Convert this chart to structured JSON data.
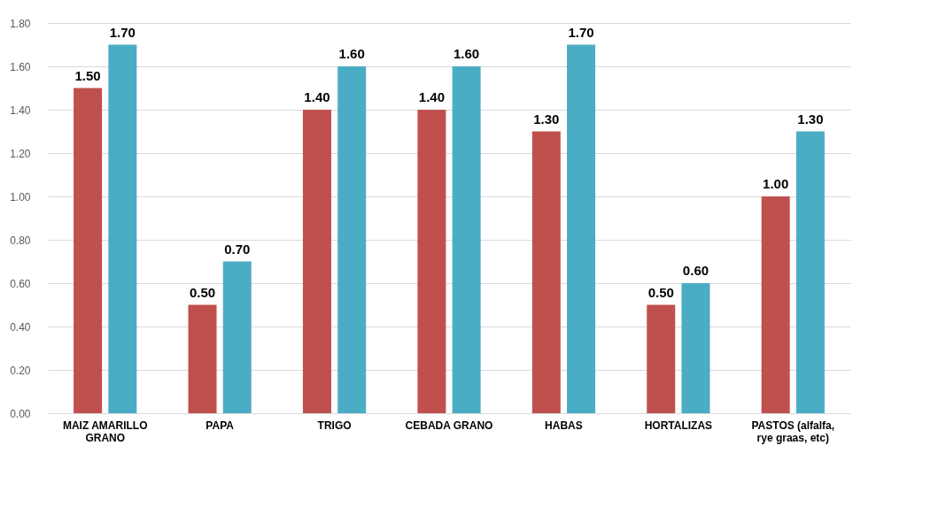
{
  "chart_data": {
    "type": "bar",
    "categories": [
      "MAIZ AMARILLO GRANO",
      "PAPA",
      "TRIGO",
      "CEBADA GRANO",
      "HABAS",
      "HORTALIZAS",
      "PASTOS (alfalfa, rye graas, etc)"
    ],
    "series": [
      {
        "color": "#c0504d",
        "values": [
          1.5,
          0.5,
          1.4,
          1.4,
          1.3,
          0.5,
          1.0
        ],
        "value_labels": [
          "1.50",
          "0.50",
          "1.40",
          "1.40",
          "1.30",
          "0.50",
          "1.00"
        ]
      },
      {
        "color": "#4bacc6",
        "values": [
          1.7,
          0.7,
          1.6,
          1.6,
          1.7,
          0.6,
          1.3
        ],
        "value_labels": [
          "1.70",
          "0.70",
          "1.60",
          "1.60",
          "1.70",
          "0.60",
          "1.30"
        ]
      }
    ],
    "ylim": [
      0,
      1.8
    ],
    "yticks": [
      {
        "value": 0,
        "label": "0.00"
      },
      {
        "value": 0.2,
        "label": "0.20"
      },
      {
        "value": 0.4,
        "label": "0.40"
      },
      {
        "value": 0.6,
        "label": "0.60"
      },
      {
        "value": 0.8,
        "label": "0.80"
      },
      {
        "value": 1.0,
        "label": "1.00"
      },
      {
        "value": 1.2,
        "label": "1.20"
      },
      {
        "value": 1.4,
        "label": "1.40"
      },
      {
        "value": 1.6,
        "label": "1.60"
      },
      {
        "value": 1.8,
        "label": "1.80"
      }
    ],
    "grid": "y"
  }
}
